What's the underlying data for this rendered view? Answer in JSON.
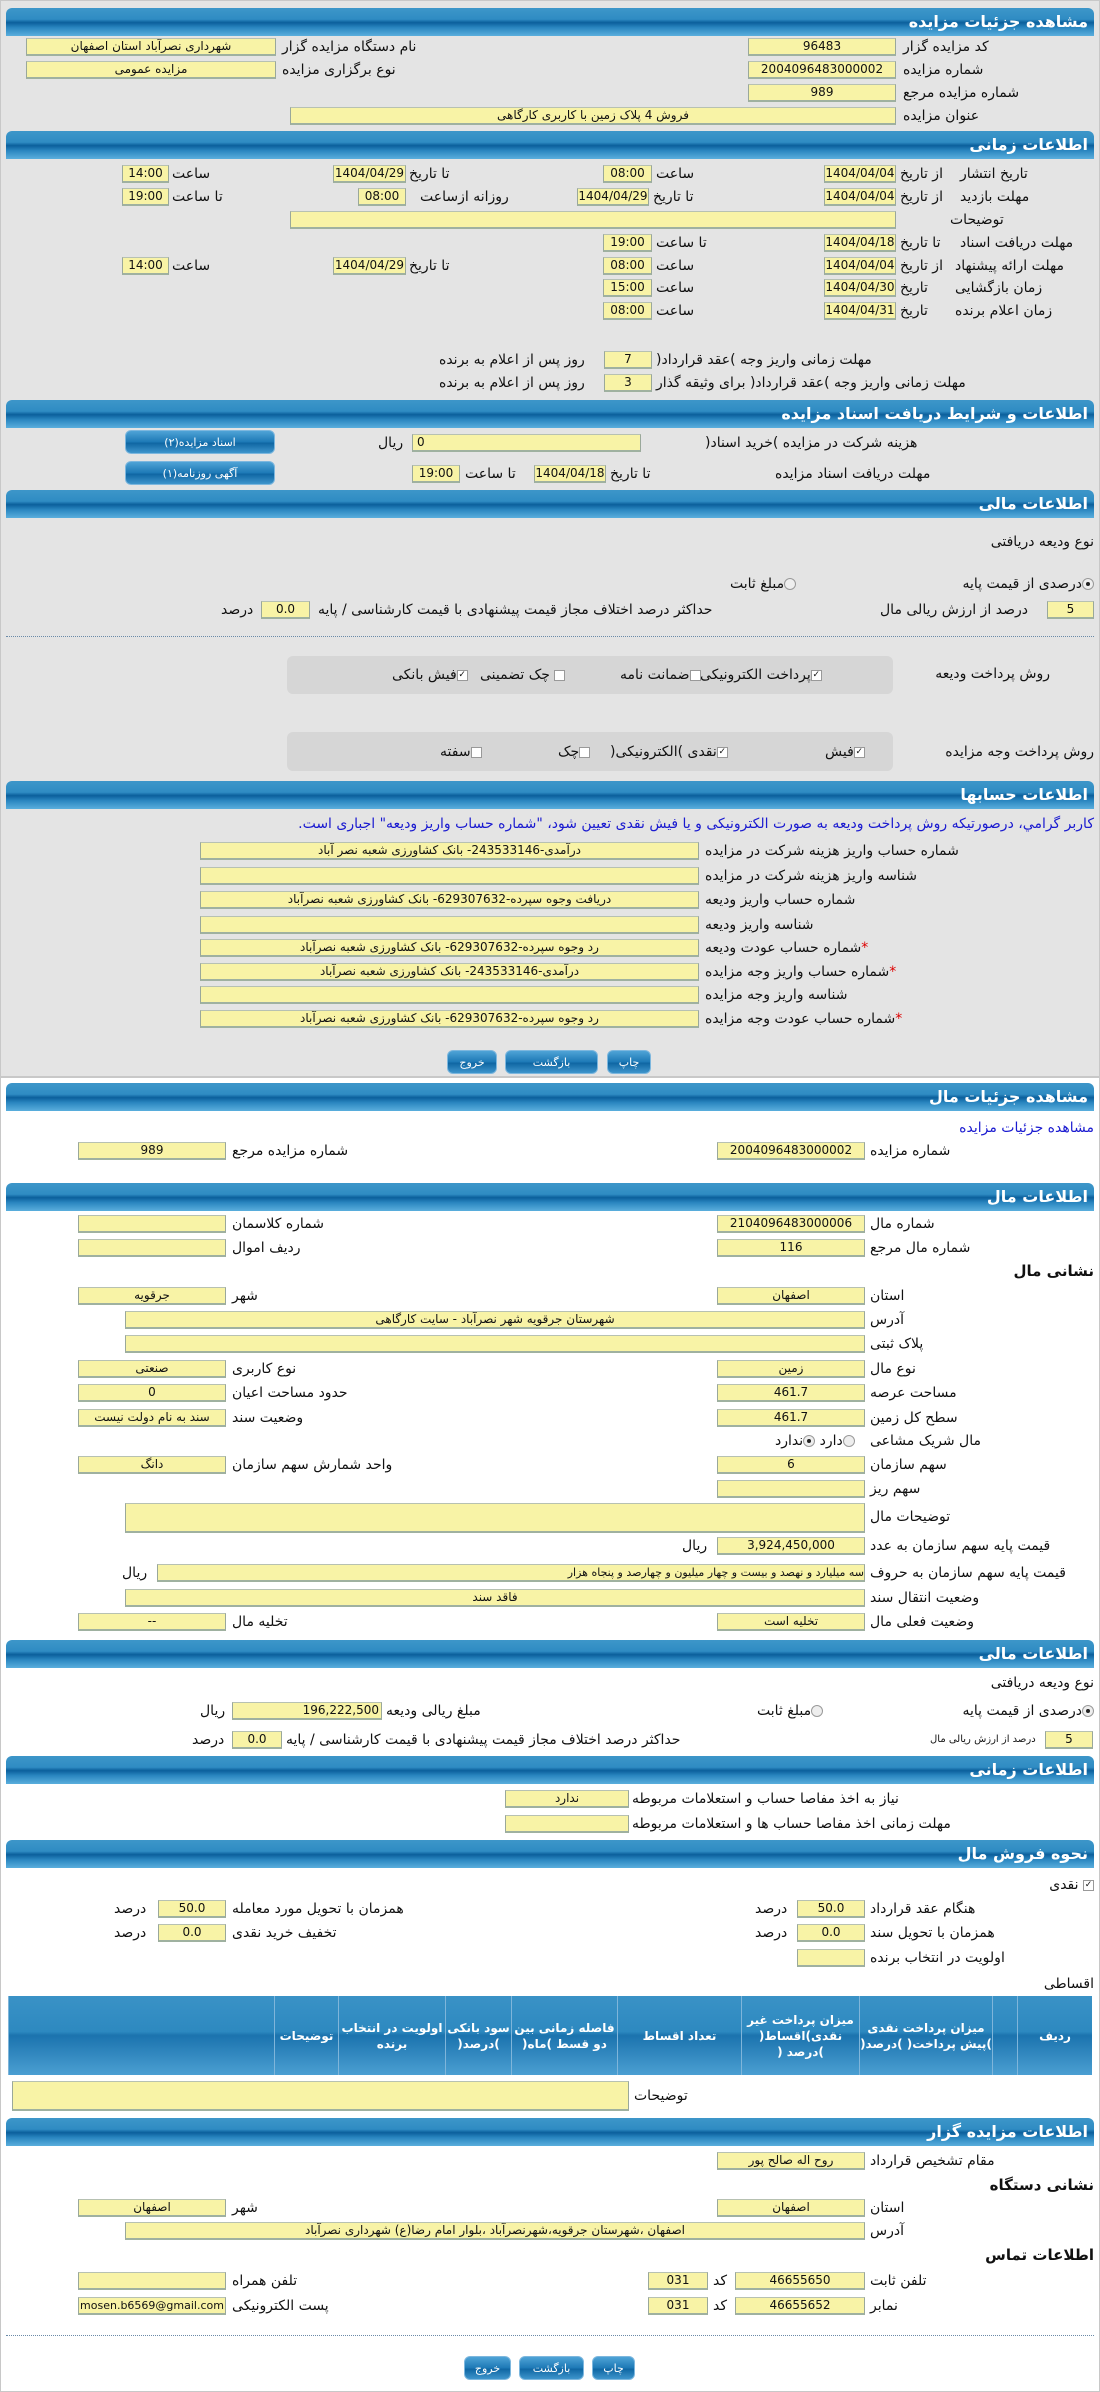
{
  "auction": {
    "title": "مشاهده جزئیات مزایده",
    "code_label": "کد مزایده گزار",
    "code": "96483",
    "org_label": "نام دستگاه مزایده گزار",
    "org": "شهرداری نصرآباد استان اصفهان",
    "number_label": "شماره مزایده",
    "number": "2004096483000002",
    "type_label": "نوع برگزاری مزایده",
    "type": "مزایده عمومی",
    "ref_label": "شماره مزایده مرجع",
    "ref": "989",
    "subject_label": "عنوان مزایده",
    "subject": "فروش 4 پلاک زمین با کاربری کارگاهی"
  },
  "timing": {
    "title": "اطلاعات زمانی",
    "from_date": "از تاریخ",
    "to_date": "تا تاریخ",
    "time": "ساعت",
    "to_time": "تا ساعت",
    "date": "تاریخ",
    "daily_from": "روزانه ازساعت",
    "publish": {
      "label": "تاریخ انتشار",
      "from": "1404/04/04",
      "from_time": "08:00",
      "to": "1404/04/29",
      "to_time": "14:00"
    },
    "visit": {
      "label": "مهلت بازدید",
      "from": "1404/04/04",
      "to": "1404/04/29",
      "daily_from": "08:00",
      "to_time": "19:00"
    },
    "desc_label": "توضیحات",
    "desc": "",
    "docs": {
      "label": "مهلت دریافت اسناد",
      "to": "1404/04/18",
      "to_time": "19:00"
    },
    "offer": {
      "label": "مهلت ارائه پیشنهاد",
      "from": "1404/04/04",
      "from_time": "08:00",
      "to": "1404/04/29",
      "to_time": "14:00"
    },
    "opening": {
      "label": "زمان بازگشایی",
      "date": "1404/04/30",
      "time": "15:00"
    },
    "winner": {
      "label": "زمان اعلام برنده",
      "date": "1404/04/31",
      "time": "08:00"
    },
    "contract1": {
      "label": "مهلت زمانی واریز وجه )عقد قرارداد(",
      "value": "7",
      "suffix": "روز پس از اعلام به برنده"
    },
    "contract2": {
      "label": "مهلت زمانی واریز وجه )عقد قرارداد( برای وثیقه گذار",
      "value": "3",
      "suffix": "روز پس از اعلام به برنده"
    }
  },
  "documents": {
    "title": "اطلاعات و شرایط دریافت اسناد مزایده",
    "fee_label": "هزینه شرکت در مزایده )خرید اسناد(",
    "fee": "0",
    "currency": "ریال",
    "deadline_label": "مهلت دریافت اسناد مزایده",
    "to_date": "تا تاریخ",
    "date": "1404/04/18",
    "to_time": "تا ساعت",
    "time": "19:00",
    "btn_docs": "اسناد مزایده(۲)",
    "btn_ad": "آگهی روزنامه(۱)"
  },
  "finance": {
    "title": "اطلاعات مالی",
    "deposit_type": "نوع ودیعه دریافتی",
    "opt_percent": "درصدی از قیمت پایه",
    "opt_fixed": "مبلغ ثابت",
    "selected": "درصدی از قیمت پایه",
    "percent": "5",
    "percent_label": "درصد از ارزش ریالی مال",
    "max_diff_label": "حداکثر درصد اختلاف مجاز قیمت پیشنهادی با قیمت کارشناسی / پایه",
    "max_diff": "0.0",
    "percent_unit": "درصد",
    "deposit_method_label": "روش پرداخت ودیعه",
    "deposit_methods": [
      {
        "label": "پرداخت الکترونیکی",
        "checked": true
      },
      {
        "label": "ضمانت نامه",
        "checked": false
      },
      {
        "label": "چک تضمینی",
        "checked": false
      },
      {
        "label": "فیش بانکی",
        "checked": true
      }
    ],
    "payment_method_label": "روش پرداخت وجه مزایده",
    "payment_methods": [
      {
        "label": "فیش",
        "checked": true
      },
      {
        "label": "نقدی )الکترونیکی(",
        "checked": true
      },
      {
        "label": "چک",
        "checked": false
      },
      {
        "label": "سفته",
        "checked": false
      }
    ]
  },
  "accounts": {
    "title": "اطلاعات حسابها",
    "notice": "کاربر گرامي، درصورتیکه روش پرداخت ودیعه به صورت الکترونیکی و یا فیش نقدی تعیین شود، \"شماره حساب واریز ودیعه\" اجباری است.",
    "rows": [
      {
        "label": "شماره حساب واریز هزینه شرکت در مزایده",
        "value": "درآمدی-243533146- بانک کشاورزی شعبه نصر آباد",
        "required": false
      },
      {
        "label": "شناسه واریز هزینه شرکت در مزایده",
        "value": "",
        "required": false
      },
      {
        "label": "شماره حساب واریز ودیعه",
        "value": "دریافت وجوه سپرده-629307632- بانک کشاورزی شعبه نصرآباد",
        "required": false
      },
      {
        "label": "شناسه واریز ودیعه",
        "value": "",
        "required": false
      },
      {
        "label": "شماره حساب عودت ودیعه",
        "value": "رد وجوه سپرده-629307632- بانک کشاورزی شعبه نصرآباد",
        "required": true
      },
      {
        "label": "شماره حساب واریز وجه مزایده",
        "value": "درآمدی-243533146- بانک کشاورزی شعبه نصرآباد",
        "required": true
      },
      {
        "label": "شناسه واریز وجه مزایده",
        "value": "",
        "required": false
      },
      {
        "label": "شماره حساب عودت وجه مزایده",
        "value": "رد وجوه سپرده-629307632- بانک کشاورزی شعبه نصرآباد",
        "required": true
      }
    ],
    "star": "*"
  },
  "actions": {
    "print": "چاپ",
    "back": "بازگشت",
    "exit": "خروج"
  },
  "item": {
    "title": "مشاهده جزئیات مال",
    "link": "مشاهده جزئیات مزایده",
    "auction_no_label": "شماره مزایده",
    "auction_no": "2004096483000002",
    "ref_label": "شماره مزایده مرجع",
    "ref": "989",
    "info_title": "اطلاعات مال",
    "item_no_label": "شماره مال",
    "item_no": "2104096483000006",
    "class_label": "شماره کلاسمان",
    "class": "",
    "item_ref_label": "شماره مال مرجع",
    "item_ref": "116",
    "row_label": "ردیف اموال",
    "row": "",
    "address_title": "نشانی مال",
    "province_label": "استان",
    "province": "اصفهان",
    "city_label": "شهر",
    "city": "جرقویه",
    "address_label": "آدرس",
    "address": "شهرستان جرقویه شهر نصرآباد - سایت کارگاهی",
    "plate_label": "پلاک ثبتی",
    "plate": "",
    "kind_label": "نوع مال",
    "kind": "زمین",
    "usage_label": "نوع کاربری",
    "usage": "صنعتی",
    "area_label": "مساحت عرصه",
    "area": "461.7",
    "building_label": "حدود مساحت اعیان",
    "building": "0",
    "land_label": "سطح کل زمین",
    "land": "461.7",
    "deed_label": "وضعیت سند",
    "deed": "سند به نام دولت نیست",
    "partner_label": "مال شریک مشاعی",
    "partner_yes": "دارد",
    "partner_no": "ندارد",
    "partner": "ندارد",
    "share_label": "سهم سازمان",
    "share": "6",
    "share_unit_label": "واحد شمارش سهم سازمان",
    "share_unit": "دانگ",
    "minor_label": "سهم ریز",
    "minor": "",
    "desc_label": "توضیحات مال",
    "desc": "",
    "price_num_label": "قیمت پایه سهم سازمان به عدد",
    "price_num": "3,924,450,000",
    "price_words_label": "قیمت پایه سهم سازمان به حروف",
    "price_words": "سه میلیارد و نهصد و بیست و چهار میلیون و چهارصد و پنجاه هزار",
    "currency": "ریال",
    "transfer_label": "وضعیت انتقال سند",
    "transfer": "فاقد سند",
    "status_label": "وضعیت فعلی مال",
    "status": "تخلیه است",
    "evict_label": "تخلیه مال",
    "evict": "--"
  },
  "item_finance": {
    "title": "اطلاعات مالی",
    "deposit_type": "نوع ودیعه دریافتی",
    "opt_percent": "درصدی از قیمت پایه",
    "opt_fixed": "مبلغ ثابت",
    "selected": "درصدی از قیمت پایه",
    "amount_label": "مبلغ ریالی ودیعه",
    "amount": "196,222,500",
    "currency": "ریال",
    "percent": "5",
    "percent_label": "درصد از ارزش ریالی مال",
    "max_diff_label": "حداکثر درصد اختلاف مجاز قیمت پیشنهادی با قیمت کارشناسی / پایه",
    "max_diff": "0.0",
    "unit": "درصد"
  },
  "item_timing": {
    "title": "اطلاعات زمانی",
    "clearance_label": "نیاز به اخذ مفاصا حساب و استعلامات مربوطه",
    "clearance": "ندارد",
    "clearance_deadline_label": "مهلت زمانی اخذ مفاصا حساب ها و استعلامات مربوطه",
    "clearance_deadline": ""
  },
  "sale": {
    "title": "نحوه فروش مال",
    "cash_label": "نقدی",
    "cash_checked": true,
    "contract_label": "هنگام عقد قرارداد",
    "contract": "50.0",
    "delivery_label": "همزمان با تحویل مورد معامله",
    "delivery": "50.0",
    "deed_label": "همزمان با تحویل سند",
    "deed": "0.0",
    "discount_label": "تخفیف خرید نقدی",
    "discount": "0.0",
    "priority_label": "اولویت در انتخاب برنده",
    "priority": "",
    "unit": "درصد",
    "installment_label": "اقساطی",
    "columns": [
      "ردیف",
      "",
      "میزان پرداخت نقدی )پیش پرداخت( )درصد(",
      "میزان پرداخت غیر نقدی)اقساط( )درصد (",
      "تعداد اقساط",
      "فاصله زمانی بین دو قسط )ماه(",
      "سود بانکی )درصد(",
      "اولویت در انتخاب برنده",
      "توضیحات",
      ""
    ],
    "desc_label": "توضیحات",
    "desc": ""
  },
  "auctioneer": {
    "title": "اطلاعات مزایده گزار",
    "authority_label": "مقام تشخیص قرارداد",
    "authority": "روح اله صالح پور",
    "org_address_title": "نشانی دستگاه",
    "province_label": "استان",
    "province": "اصفهان",
    "city_label": "شهر",
    "city": "اصفهان",
    "address_label": "آدرس",
    "address": "اصفهان ،شهرستان جرقویه،شهرنصرآباد ،بلوار امام رضا(ع) شهرداری نصرآباد",
    "contact_title": "اطلاعات تماس",
    "phone_label": "تلفن ثابت",
    "phone": "46655650",
    "code_label": "کد",
    "phone_code": "031",
    "fax_label": "نمابر",
    "fax": "46655652",
    "fax_code": "031",
    "mobile_label": "تلفن همراه",
    "mobile": "",
    "email_label": "پست الکترونیکی",
    "email": "mosen.b6569@gmail.com"
  },
  "colors": {
    "header_blue": "#1b73ae",
    "field_yellow": "#f8f3a6",
    "notice_blue": "#1a1ad0",
    "required_red": "#dd0000"
  }
}
